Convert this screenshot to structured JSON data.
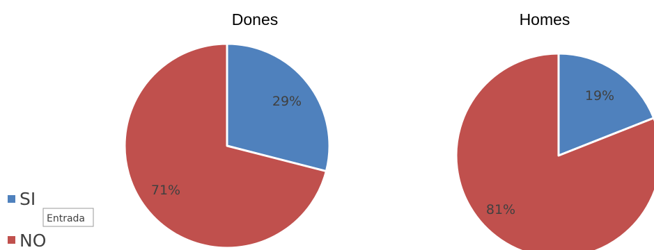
{
  "colors": {
    "si": "#4F81BD",
    "no": "#C0504D"
  },
  "legend": {
    "items": [
      {
        "label": "SI",
        "color": "#4F81BD"
      },
      {
        "label": "NO",
        "color": "#C0504D"
      }
    ]
  },
  "tooltip": {
    "text": "Entrada"
  },
  "chart_data": [
    {
      "type": "pie",
      "title": "Dones",
      "categories": [
        "SI",
        "NO"
      ],
      "values": [
        29,
        71
      ],
      "labels": [
        "29%",
        "71%"
      ],
      "legend_placement": "left"
    },
    {
      "type": "pie",
      "title": "Homes",
      "categories": [
        "SI",
        "NO"
      ],
      "values": [
        19,
        81
      ],
      "labels": [
        "19%",
        "81%"
      ],
      "legend_placement": "left"
    }
  ]
}
